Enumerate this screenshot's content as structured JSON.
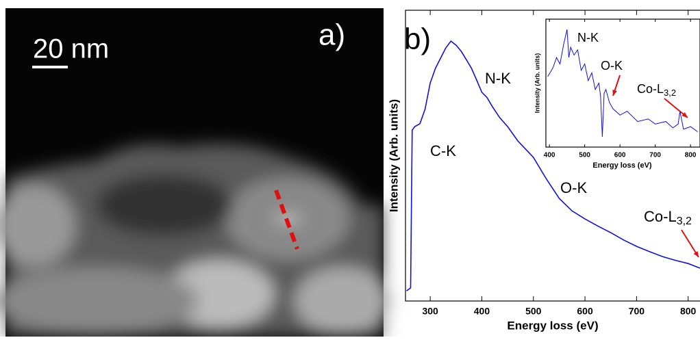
{
  "image": {
    "scale_bar": "20 nm",
    "panel_label": "a)"
  },
  "chart_data": [
    {
      "type": "line",
      "panel_label": "b)",
      "x_label": "Energy loss (eV)",
      "y_label": "Intensity (Arb. units)",
      "color": "#1010e0",
      "x": [
        254,
        258,
        262,
        265,
        270,
        280,
        290,
        300,
        310,
        320,
        330,
        340,
        350,
        360,
        370,
        380,
        390,
        400,
        410,
        420,
        435,
        450,
        470,
        500,
        525,
        550,
        575,
        600,
        625,
        650,
        675,
        700,
        725,
        750,
        775,
        800,
        823
      ],
      "values": [
        3.5,
        4,
        4.5,
        58.8,
        60,
        61,
        66,
        75,
        80,
        83.5,
        87,
        89.4,
        88,
        85.9,
        83,
        80,
        76,
        71.8,
        70,
        67,
        63,
        60,
        55,
        49.4,
        42,
        35.3,
        31,
        28.2,
        25.8,
        23.5,
        21,
        18.8,
        17,
        15.3,
        14,
        12.9,
        11.3
      ],
      "xlim": [
        252,
        823
      ],
      "ylim": [
        0,
        100
      ],
      "xticks": [
        300,
        400,
        500,
        600,
        700,
        800
      ],
      "annotations": [
        {
          "text": "C-K"
        },
        {
          "text": "N-K"
        },
        {
          "text": "O-K"
        },
        {
          "text": "Co-L",
          "sub": "3,2"
        }
      ]
    },
    {
      "type": "line",
      "x_label": "Energy loss (eV)",
      "y_label": "Intensity (Arb. units)",
      "color": "#1010e0",
      "x": [
        395,
        410,
        420,
        430,
        440,
        450,
        455,
        460,
        470,
        480,
        490,
        500,
        510,
        520,
        530,
        540,
        545,
        550,
        555,
        560,
        570,
        580,
        600,
        620,
        650,
        680,
        700,
        730,
        750,
        765,
        770,
        780,
        800,
        820
      ],
      "values": [
        55,
        62,
        70,
        65,
        80,
        92,
        70,
        78,
        72,
        76,
        60,
        65,
        52,
        58,
        45,
        50,
        40,
        8,
        42,
        45,
        35,
        30,
        25,
        28,
        20,
        22,
        18,
        20,
        15,
        18,
        28,
        14,
        16,
        12
      ],
      "xlim": [
        390,
        823
      ],
      "ylim": [
        0,
        100
      ],
      "xticks": [
        400,
        500,
        600,
        700,
        800
      ],
      "annotations": [
        {
          "text": "N-K"
        },
        {
          "text": "O-K"
        },
        {
          "text": "Co-L",
          "sub": "3,2"
        }
      ]
    }
  ]
}
